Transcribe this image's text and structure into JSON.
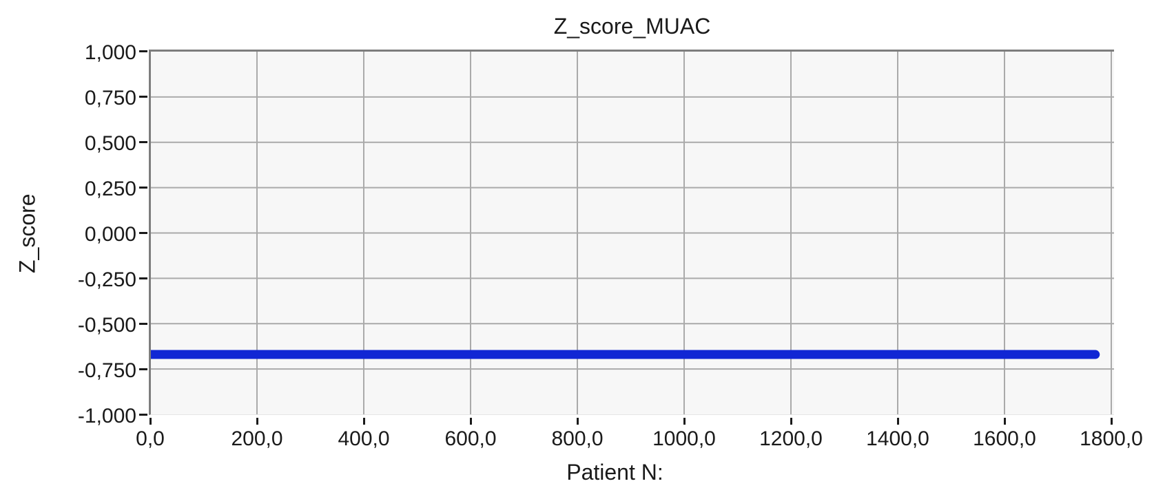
{
  "chart_data": {
    "type": "line",
    "title": "Z_score_MUAC",
    "xlabel": "Patient N:",
    "ylabel": "Z_score",
    "xlim": [
      0,
      1800
    ],
    "ylim": [
      -1.0,
      1.0
    ],
    "grid": true,
    "legend": "none",
    "decimal_separator": ",",
    "x_ticks": [
      {
        "value": 0,
        "label": "0,0"
      },
      {
        "value": 200,
        "label": "200,0"
      },
      {
        "value": 400,
        "label": "400,0"
      },
      {
        "value": 600,
        "label": "600,0"
      },
      {
        "value": 800,
        "label": "800,0"
      },
      {
        "value": 1000,
        "label": "1000,0"
      },
      {
        "value": 1200,
        "label": "1200,0"
      },
      {
        "value": 1400,
        "label": "1400,0"
      },
      {
        "value": 1600,
        "label": "1600,0"
      },
      {
        "value": 1800,
        "label": "1800,0"
      }
    ],
    "y_ticks": [
      {
        "value": 1.0,
        "label": "1,000"
      },
      {
        "value": 0.75,
        "label": "0,750"
      },
      {
        "value": 0.5,
        "label": "0,500"
      },
      {
        "value": 0.25,
        "label": "0,250"
      },
      {
        "value": 0.0,
        "label": "0,000"
      },
      {
        "value": -0.25,
        "label": "-0,250"
      },
      {
        "value": -0.5,
        "label": "-0,500"
      },
      {
        "value": -0.75,
        "label": "-0,750"
      },
      {
        "value": -1.0,
        "label": "-1,000"
      }
    ],
    "series": [
      {
        "name": "Z_score_MUAC",
        "shape": "constant-horizontal-line",
        "x_start": 0,
        "x_end": 1770,
        "value": -0.67,
        "color": "#1126d4",
        "thickness_px": 13
      }
    ],
    "colors": {
      "page_background": "#ffffff",
      "plot_background": "#f7f7f7",
      "gridline": "#aaaaaa",
      "axis_border": "#7d7d7d",
      "tick": "#1a1a1a",
      "text": "#1a1a1a"
    }
  }
}
